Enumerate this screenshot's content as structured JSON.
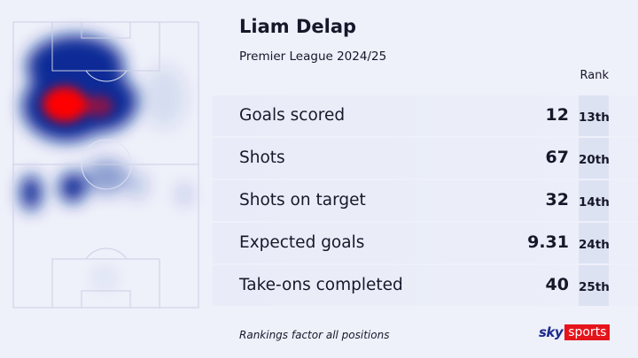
{
  "player": {
    "name": "Liam Delap",
    "competition": "Premier League 2024/25"
  },
  "rank_header": "Rank",
  "stats": [
    {
      "label": "Goals scored",
      "value": "12",
      "rank": "13th"
    },
    {
      "label": "Shots",
      "value": "67",
      "rank": "20th"
    },
    {
      "label": "Shots on target",
      "value": "32",
      "rank": "14th"
    },
    {
      "label": "Expected goals",
      "value": "9.31",
      "rank": "24th"
    },
    {
      "label": "Take-ons completed",
      "value": "40",
      "rank": "25th"
    }
  ],
  "footnote": "Rankings factor all positions",
  "brand": {
    "sky": "sky",
    "sports": "sports",
    "red": "#e5141b",
    "blue": "#1b2a8a"
  },
  "heatmap": {
    "hot_color": "#ff0000",
    "mid_color": "#0a2a96"
  }
}
